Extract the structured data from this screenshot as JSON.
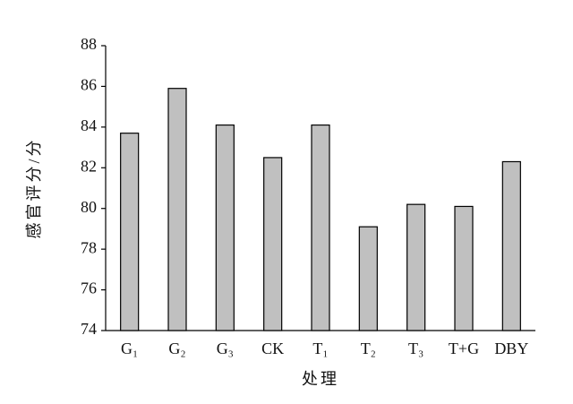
{
  "chart_data": {
    "type": "bar",
    "x_label": "处理",
    "y_label": "感官评分/分",
    "categories": [
      "G₁",
      "G₂",
      "G₃",
      "CK",
      "T₁",
      "T₂",
      "T₃",
      "T+G",
      "DBY"
    ],
    "values": [
      83.7,
      85.9,
      84.1,
      82.5,
      84.1,
      79.1,
      80.2,
      80.1,
      82.3
    ],
    "color": "#c0c0c0",
    "ylim": [
      74,
      88
    ],
    "yticks": [
      74,
      76,
      78,
      80,
      82,
      84,
      86,
      88
    ],
    "grid": false
  }
}
